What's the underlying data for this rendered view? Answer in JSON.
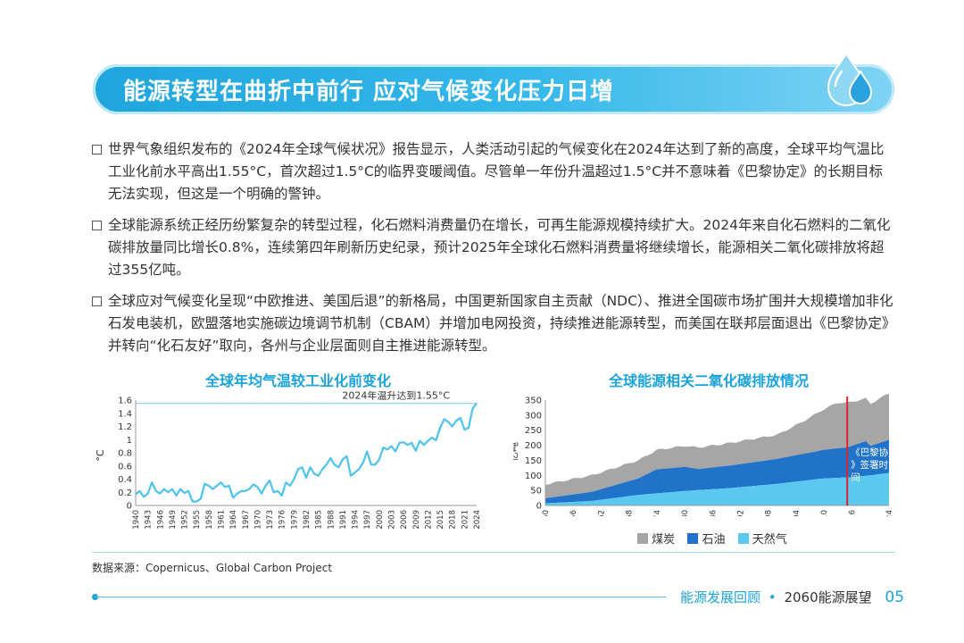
{
  "banner": {
    "title": "能源转型在曲折中前行  应对气候变化压力日增"
  },
  "bullets": [
    "世界气象组织发布的《2024年全球气候状况》报告显示，人类活动引起的气候变化在2024年达到了新的高度，全球平均气温比工业化前水平高出1.55°C，首次超过1.5°C的临界变暖阈值。尽管单一年份升温超过1.5°C并不意味着《巴黎协定》的长期目标无法实现，但这是一个明确的警钟。",
    "全球能源系统正经历纷繁复杂的转型过程，化石燃料消费量仍在增长，可再生能源规模持续扩大。2024年来自化石燃料的二氧化碳排放量同比增长0.8%，连续第四年刷新历史纪录，预计2025年全球化石燃料消费量将继续增长，能源相关二氧化碳排放将超过355亿吨。",
    "全球应对气候变化呈现“中欧推进、美国后退”的新格局，中国更新国家自主贡献（NDC）、推进全国碳市场扩围并大规模增加非化石发电装机，欧盟落地实施碳边境调节机制（CBAM）并增加电网投资，持续推进能源转型，而美国在联邦层面退出《巴黎协定》并转向“化石友好”取向，各州与企业层面则自主推进能源转型。"
  ],
  "chart_data": [
    {
      "type": "line",
      "title": "全球年均气温较工业化前变化",
      "ylabel": "°C",
      "ylim": [
        0,
        1.6
      ],
      "yticks": [
        "0",
        "0.2",
        "0.4",
        "0.6",
        "0.8",
        "1",
        "1.2",
        "1.4",
        "1.6"
      ],
      "xtick_labels": [
        "1940",
        "1943",
        "1946",
        "1949",
        "1952",
        "1955",
        "1958",
        "1961",
        "1964",
        "1967",
        "1970",
        "1973",
        "1976",
        "1979",
        "1982",
        "1985",
        "1988",
        "1991",
        "1994",
        "1997",
        "2000",
        "2003",
        "2006",
        "2009",
        "2012",
        "2015",
        "2018",
        "2021",
        "2024"
      ],
      "annotation": "2024年温升达到1.55°C",
      "annotation_value": 1.55,
      "color": "#4cc3ee",
      "series": [
        {
          "name": "温升",
          "x_start": 1940,
          "values": [
            0.17,
            0.22,
            0.13,
            0.18,
            0.35,
            0.22,
            0.18,
            0.25,
            0.2,
            0.25,
            0.15,
            0.25,
            0.19,
            0.22,
            0.06,
            0.06,
            0.1,
            0.33,
            0.3,
            0.25,
            0.3,
            0.35,
            0.28,
            0.3,
            0.12,
            0.18,
            0.22,
            0.22,
            0.25,
            0.32,
            0.28,
            0.18,
            0.3,
            0.38,
            0.2,
            0.22,
            0.15,
            0.35,
            0.3,
            0.4,
            0.55,
            0.58,
            0.42,
            0.58,
            0.48,
            0.45,
            0.55,
            0.62,
            0.72,
            0.62,
            0.58,
            0.7,
            0.75,
            0.45,
            0.5,
            0.55,
            0.65,
            0.82,
            0.62,
            0.62,
            0.7,
            0.88,
            0.85,
            0.9,
            0.82,
            0.95,
            0.96,
            0.92,
            0.95,
            0.83,
            0.98,
            0.92,
            0.98,
            1.03,
            0.99,
            1.18,
            1.31,
            1.27,
            1.2,
            1.29,
            1.33,
            1.15,
            1.18,
            1.47,
            1.55
          ]
        }
      ]
    },
    {
      "type": "area",
      "title": "全球能源相关二氧化碳排放情况",
      "ylabel": "亿吨",
      "ylim": [
        0,
        350
      ],
      "yticks": [
        "0",
        "50",
        "100",
        "150",
        "200",
        "250",
        "300",
        "350"
      ],
      "xtick_labels": [
        "1950",
        "1956",
        "1962",
        "1968",
        "1974",
        "1980",
        "1986",
        "1992",
        "1998",
        "2004",
        "2010",
        "2016",
        "2024"
      ],
      "x_start": 1950,
      "x_end": 2024,
      "stacked": true,
      "annotation": "《巴黎协定》签署时间",
      "annotation_year": 2015,
      "series": [
        {
          "name": "天然气",
          "color": "#5bc8f0",
          "points": [
            [
              1950,
              7
            ],
            [
              1960,
              15
            ],
            [
              1970,
              35
            ],
            [
              1980,
              48
            ],
            [
              1990,
              58
            ],
            [
              2000,
              72
            ],
            [
              2010,
              90
            ],
            [
              2015,
              93
            ],
            [
              2020,
              100
            ],
            [
              2024,
              108
            ]
          ]
        },
        {
          "name": "石油",
          "color": "#2073c8",
          "points": [
            [
              1950,
              17
            ],
            [
              1960,
              30
            ],
            [
              1970,
              55
            ],
            [
              1974,
              80
            ],
            [
              1980,
              80
            ],
            [
              1983,
              70
            ],
            [
              1990,
              75
            ],
            [
              2000,
              83
            ],
            [
              2010,
              95
            ],
            [
              2015,
              100
            ],
            [
              2019,
              115
            ],
            [
              2020,
              98
            ],
            [
              2024,
              110
            ]
          ]
        },
        {
          "name": "煤炭",
          "color": "#a6a6a6",
          "points": [
            [
              1950,
              46
            ],
            [
              1960,
              55
            ],
            [
              1970,
              60
            ],
            [
              1980,
              70
            ],
            [
              1990,
              75
            ],
            [
              2000,
              80
            ],
            [
              2005,
              105
            ],
            [
              2010,
              135
            ],
            [
              2013,
              152
            ],
            [
              2015,
              148
            ],
            [
              2020,
              140
            ],
            [
              2024,
              155
            ]
          ]
        }
      ],
      "legend": [
        "煤炭",
        "石油",
        "天然气"
      ]
    }
  ],
  "source": "数据来源：Copernicus、Global Carbon Project",
  "footer": {
    "section": "能源发展回顾",
    "separator": "•",
    "book": "2060能源展望",
    "page": "05"
  }
}
